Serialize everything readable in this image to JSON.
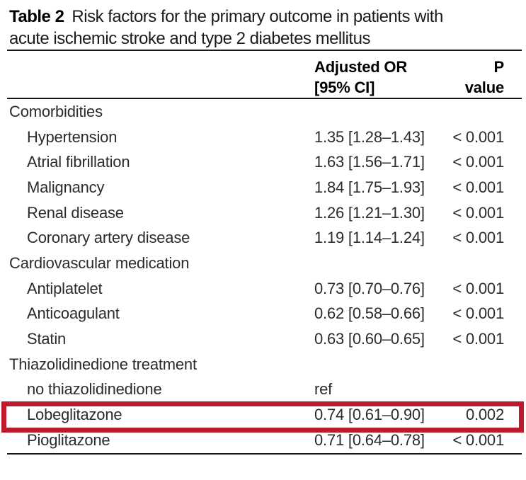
{
  "title": {
    "label": "Table 2",
    "line1": "Risk factors for the primary outcome in patients with",
    "line2": "acute ischemic stroke and type 2 diabetes mellitus"
  },
  "header": {
    "or_line1": "Adjusted OR",
    "or_line2": "[95% CI]",
    "p_line1": "P",
    "p_line2": "value"
  },
  "rows": [
    {
      "label": "Comorbidities",
      "type": "group",
      "or": "",
      "p": ""
    },
    {
      "label": "Hypertension",
      "type": "item",
      "or": "1.35 [1.28–1.43]",
      "p": "< 0.001"
    },
    {
      "label": "Atrial fibrillation",
      "type": "item",
      "or": "1.63 [1.56–1.71]",
      "p": "< 0.001"
    },
    {
      "label": "Malignancy",
      "type": "item",
      "or": "1.84 [1.75–1.93]",
      "p": "< 0.001"
    },
    {
      "label": "Renal disease",
      "type": "item",
      "or": "1.26 [1.21–1.30]",
      "p": "< 0.001"
    },
    {
      "label": "Coronary artery disease",
      "type": "item",
      "or": "1.19 [1.14–1.24]",
      "p": "< 0.001"
    },
    {
      "label": "Cardiovascular medication",
      "type": "group",
      "or": "",
      "p": ""
    },
    {
      "label": "Antiplatelet",
      "type": "item",
      "or": "0.73 [0.70–0.76]",
      "p": "< 0.001"
    },
    {
      "label": "Anticoagulant",
      "type": "item",
      "or": "0.62 [0.58–0.66]",
      "p": "< 0.001"
    },
    {
      "label": "Statin",
      "type": "item",
      "or": "0.63 [0.60–0.65]",
      "p": "< 0.001"
    },
    {
      "label": "Thiazolidinedione treatment",
      "type": "group",
      "or": "",
      "p": ""
    },
    {
      "label": "no thiazolidinedione",
      "type": "item",
      "or": "ref",
      "p": ""
    },
    {
      "label": "Lobeglitazone",
      "type": "item",
      "or": "0.74 [0.61–0.90]",
      "p": "0.002",
      "highlighted": true
    },
    {
      "label": "Pioglitazone",
      "type": "item",
      "or": "0.71 [0.64–0.78]",
      "p": "< 0.001"
    }
  ],
  "highlight": {
    "row_label": "Lobeglitazone",
    "color": "#be1a2d"
  }
}
